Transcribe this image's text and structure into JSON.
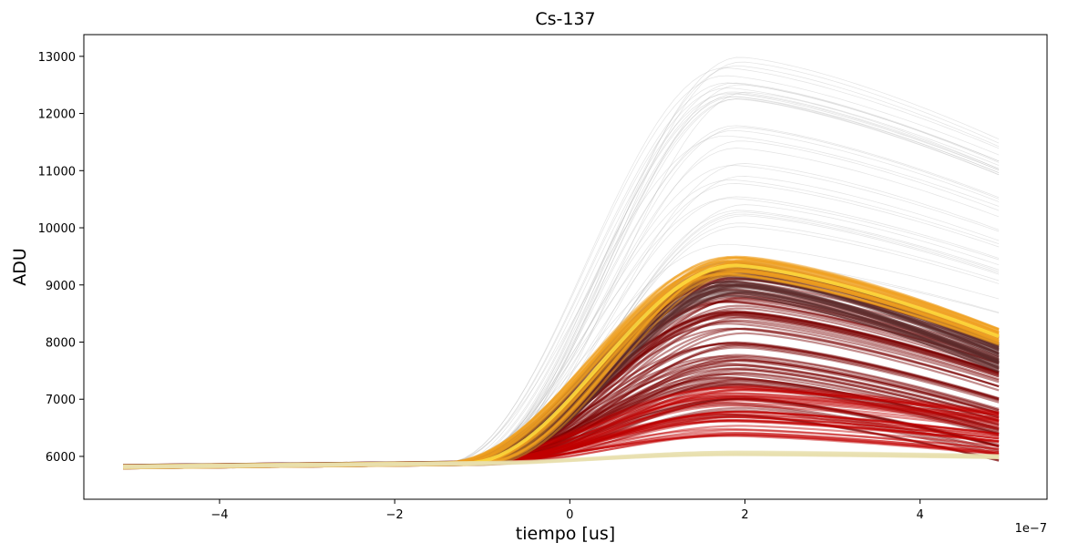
{
  "chart_data": {
    "type": "line",
    "title": "Cs-137",
    "xlabel": "tiempo [us]",
    "ylabel": "ADU",
    "x_offset_label": "1e−7",
    "xlim": [
      -5.55,
      5.45
    ],
    "ylim": [
      5250,
      13380
    ],
    "x_ticks": [
      -4,
      -2,
      0,
      2,
      4
    ],
    "x_tick_labels": [
      "−4",
      "−2",
      "0",
      "2",
      "4"
    ],
    "y_ticks": [
      6000,
      7000,
      8000,
      9000,
      10000,
      11000,
      12000,
      13000
    ],
    "y_tick_labels": [
      "6000",
      "7000",
      "8000",
      "9000",
      "10000",
      "11000",
      "12000",
      "13000"
    ],
    "grid": false,
    "legend": "none",
    "x_range_of_traces": [
      -5.1,
      4.95
    ],
    "baseline": 5820,
    "rise_start": -1.2,
    "peak_time": 1.9,
    "series": [
      {
        "peak": 9340,
        "end_value": 8070,
        "count": 40,
        "spread": 180,
        "color": "#f0a020",
        "core_color": "#ffe040"
      },
      {
        "peak": 9100,
        "end_value": 7700,
        "count": 50,
        "spread": 300,
        "color": "#5a2a2a"
      },
      {
        "peak": 8000,
        "end_value": 7000,
        "count": 90,
        "spread": 1300,
        "color": "#7a0000"
      },
      {
        "peak": 6800,
        "end_value": 6400,
        "count": 40,
        "spread": 450,
        "color": "#c00000"
      },
      {
        "peak": 6060,
        "end_value": 6000,
        "count": 15,
        "spread": 40,
        "color": "#e8e0b0"
      },
      {
        "peak": 11200,
        "end_value": 10000,
        "count": 40,
        "spread": 1800,
        "color": "#b0b0b0"
      }
    ]
  }
}
